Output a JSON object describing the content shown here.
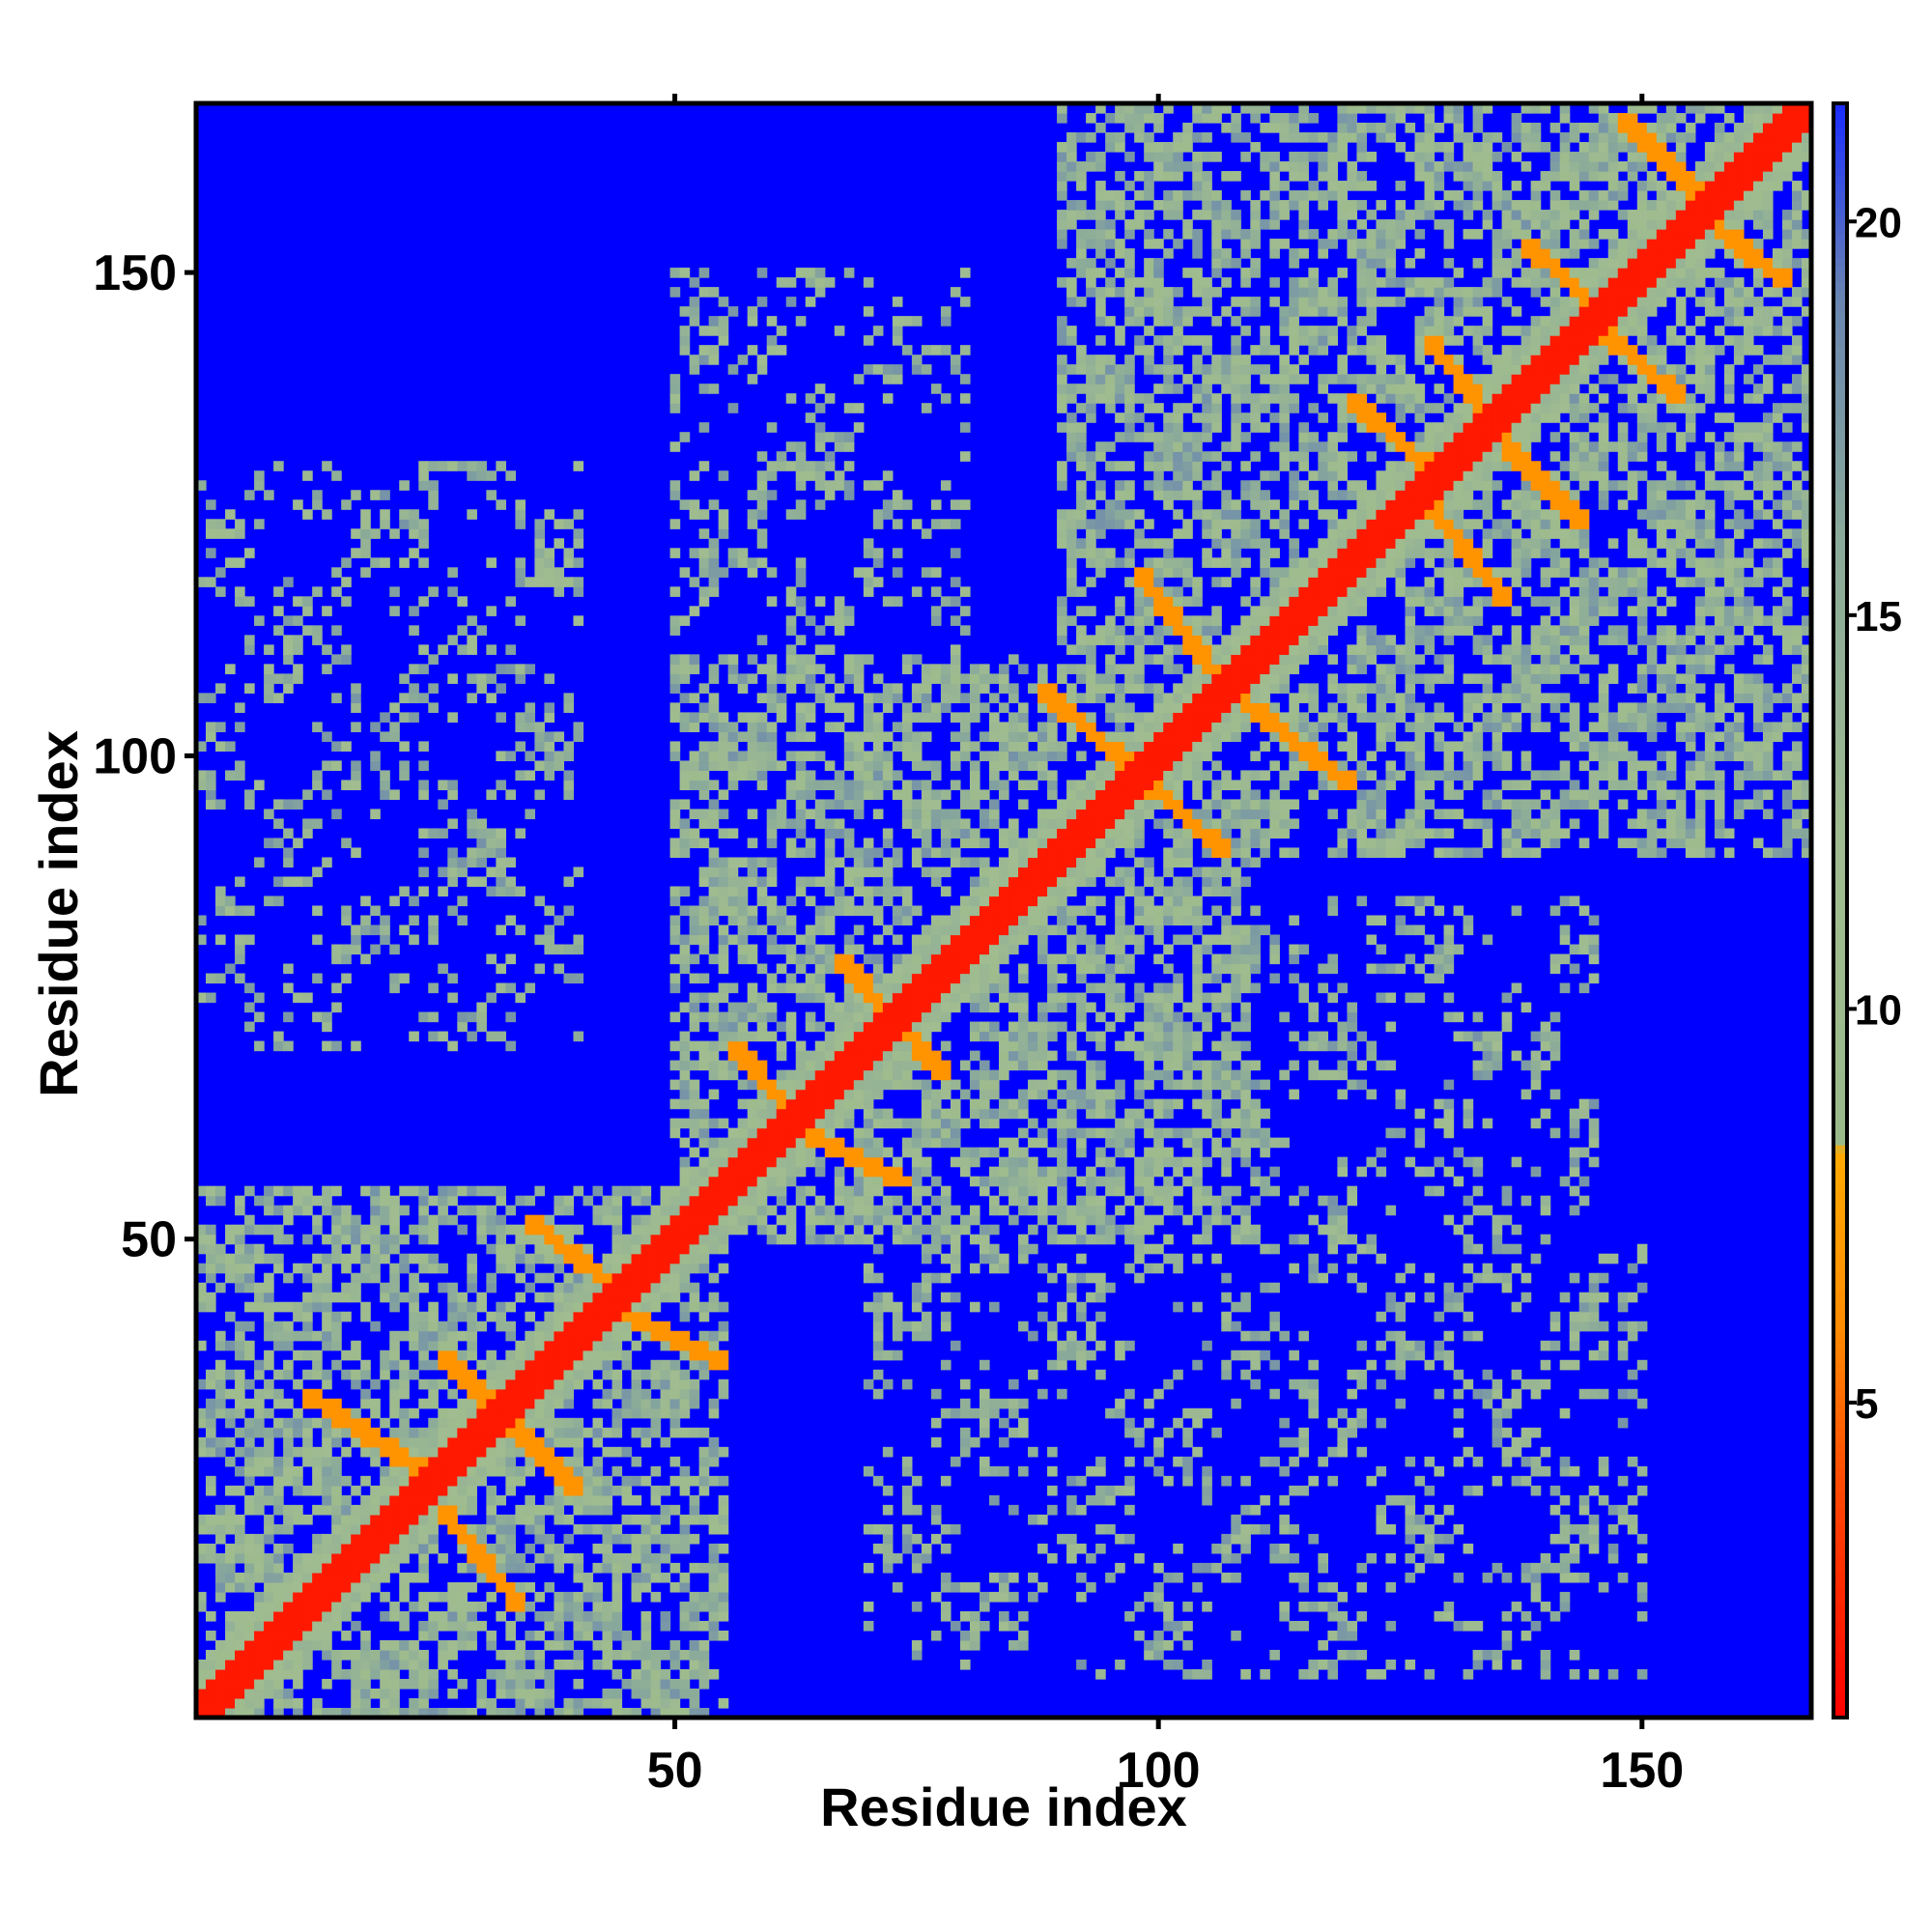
{
  "chart_data": {
    "type": "heatmap",
    "title": "",
    "xlabel": "Residue index",
    "ylabel": "Residue index",
    "n_residues": 167,
    "xlim": [
      1,
      167
    ],
    "ylim": [
      1,
      167
    ],
    "x_ticks": [
      50,
      100,
      150
    ],
    "y_ticks": [
      50,
      100,
      150
    ],
    "colorbar": {
      "ticks": [
        5,
        10,
        15,
        20
      ],
      "range": [
        1,
        21.5
      ],
      "stops": [
        {
          "value": 1,
          "color": "#ff0000"
        },
        {
          "value": 4,
          "color": "#ff4a00"
        },
        {
          "value": 6,
          "color": "#ff8c00"
        },
        {
          "value": 8.2,
          "color": "#ffaa00"
        },
        {
          "value": 8.3,
          "color": "#9aba8a"
        },
        {
          "value": 12,
          "color": "#a0bc90"
        },
        {
          "value": 16,
          "color": "#8aaa9a"
        },
        {
          "value": 19,
          "color": "#6a86b0"
        },
        {
          "value": 21.5,
          "color": "#1a2cff"
        }
      ]
    },
    "background_value": 21.5,
    "background_color": "#0000ff",
    "contact_blocks": [
      {
        "x": [
          1,
          55
        ],
        "y": [
          1,
          55
        ],
        "note": "N-terminal domain, intense"
      },
      {
        "x": [
          50,
          110
        ],
        "y": [
          50,
          110
        ],
        "note": "central domain"
      },
      {
        "x": [
          90,
          167
        ],
        "y": [
          90,
          167
        ],
        "note": "C-terminal domain, intense"
      },
      {
        "x": [
          1,
          40
        ],
        "y": [
          70,
          130
        ],
        "note": "sparse off-diagonal"
      },
      {
        "x": [
          50,
          80
        ],
        "y": [
          80,
          150
        ],
        "note": "sparse off-diagonal"
      },
      {
        "x": [
          70,
          150
        ],
        "y": [
          5,
          50
        ],
        "note": "sparse off-diagonal"
      },
      {
        "x": [
          100,
          145
        ],
        "y": [
          50,
          85
        ],
        "note": "sparse off-diagonal"
      }
    ],
    "diagonal": {
      "width": 2,
      "value": 2
    },
    "secondary_contacts": [
      {
        "from": [
          12,
          34
        ],
        "to": [
          24,
          26
        ]
      },
      {
        "from": [
          26,
          38
        ],
        "to": [
          40,
          24
        ]
      },
      {
        "from": [
          26,
          22
        ],
        "to": [
          34,
          12
        ]
      },
      {
        "from": [
          35,
          52
        ],
        "to": [
          45,
          44
        ]
      },
      {
        "from": [
          44,
          43
        ],
        "to": [
          55,
          37
        ]
      },
      {
        "from": [
          56,
          70
        ],
        "to": [
          65,
          60
        ]
      },
      {
        "from": [
          65,
          60
        ],
        "to": [
          74,
          56
        ]
      },
      {
        "from": [
          67,
          79
        ],
        "to": [
          78,
          67
        ]
      },
      {
        "from": [
          88,
          107
        ],
        "to": [
          98,
          98
        ]
      },
      {
        "from": [
          98,
          98
        ],
        "to": [
          107,
          90
        ]
      },
      {
        "from": [
          98,
          119
        ],
        "to": [
          107,
          107
        ]
      },
      {
        "from": [
          107,
          107
        ],
        "to": [
          120,
          97
        ]
      },
      {
        "from": [
          120,
          137
        ],
        "to": [
          130,
          128
        ]
      },
      {
        "from": [
          128,
          126
        ],
        "to": [
          136,
          116
        ]
      },
      {
        "from": [
          128,
          143
        ],
        "to": [
          136,
          133
        ]
      },
      {
        "from": [
          136,
          132
        ],
        "to": [
          144,
          124
        ]
      },
      {
        "from": [
          138,
          153
        ],
        "to": [
          147,
          145
        ]
      },
      {
        "from": [
          146,
          144
        ],
        "to": [
          154,
          137
        ]
      },
      {
        "from": [
          148,
          166
        ],
        "to": [
          158,
          156
        ]
      },
      {
        "from": [
          156,
          156
        ],
        "to": [
          165,
          149
        ]
      }
    ]
  }
}
